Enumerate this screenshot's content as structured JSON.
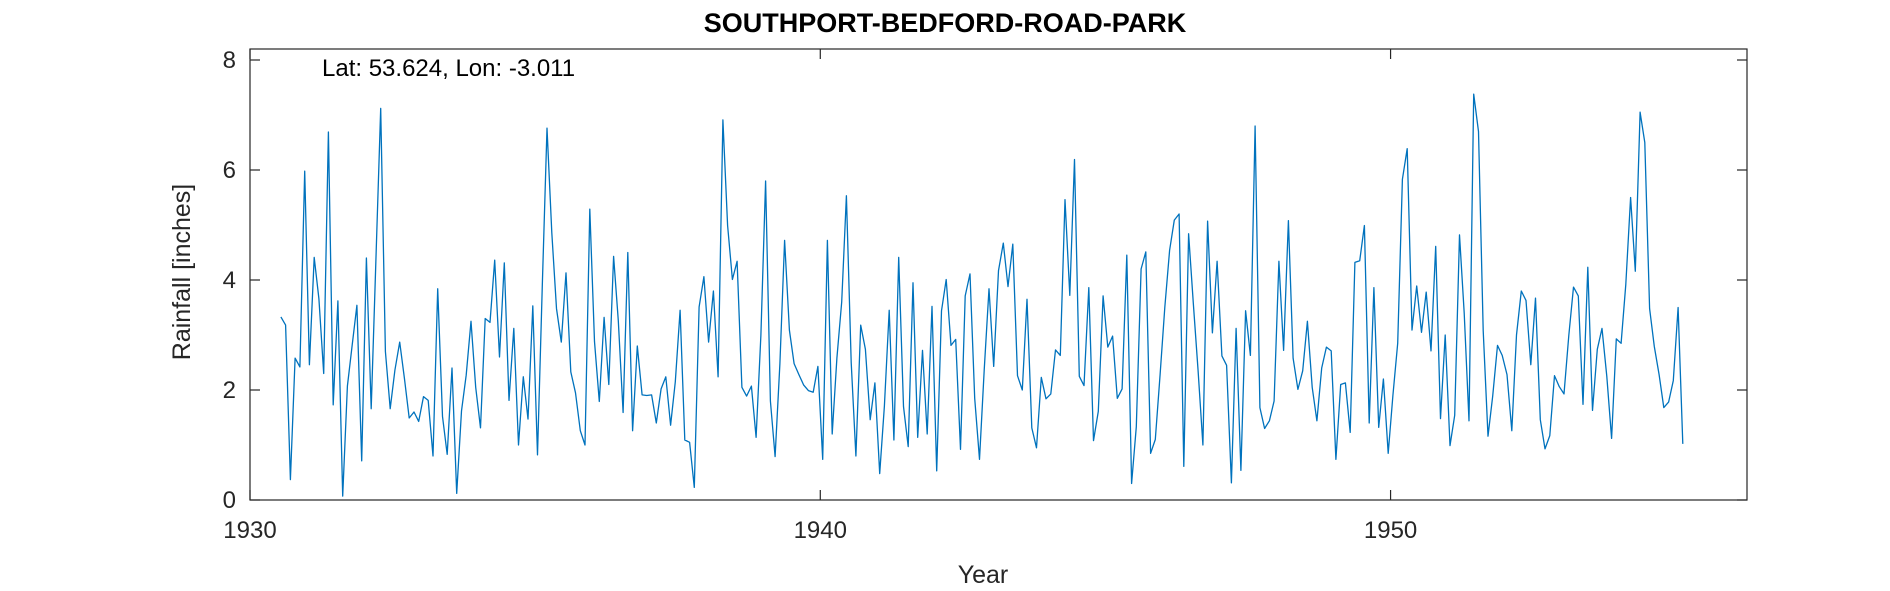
{
  "chart_data": {
    "type": "line",
    "title": "SOUTHPORT-BEDFORD-ROAD-PARK",
    "annotation": "Lat: 53.624, Lon: -3.011",
    "xlabel": "Year",
    "ylabel": "Rainfall [inches]",
    "xlim": [
      1930,
      1956.25
    ],
    "ylim": [
      0,
      8.2
    ],
    "xticks": [
      1930,
      1940,
      1950
    ],
    "yticks": [
      0,
      2,
      4,
      6,
      8
    ],
    "grid": false,
    "legend": "none",
    "series": [
      {
        "color": "#0072BD",
        "x_start": 1930.5417,
        "x_step": 0.083333,
        "values": [
          3.33,
          3.18,
          0.37,
          2.58,
          2.42,
          5.98,
          2.46,
          4.41,
          3.66,
          2.3,
          6.69,
          1.73,
          3.62,
          0.07,
          2.07,
          2.82,
          3.54,
          0.71,
          4.4,
          1.66,
          4.36,
          7.12,
          2.7,
          1.66,
          2.36,
          2.87,
          2.2,
          1.49,
          1.6,
          1.43,
          1.88,
          1.81,
          0.8,
          3.84,
          1.52,
          0.83,
          2.4,
          0.12,
          1.62,
          2.27,
          3.25,
          2.05,
          1.31,
          3.3,
          3.23,
          4.36,
          2.6,
          4.31,
          1.81,
          3.12,
          1.0,
          2.24,
          1.47,
          3.53,
          0.82,
          3.9,
          6.76,
          4.86,
          3.48,
          2.87,
          4.13,
          2.33,
          1.95,
          1.26,
          1.0,
          5.29,
          2.88,
          1.79,
          3.32,
          2.1,
          4.43,
          3.26,
          1.59,
          4.5,
          1.26,
          2.8,
          1.91,
          1.9,
          1.91,
          1.4,
          2.02,
          2.24,
          1.36,
          2.15,
          3.45,
          1.09,
          1.05,
          0.23,
          3.51,
          4.06,
          2.87,
          3.8,
          2.24,
          6.91,
          4.99,
          4.01,
          4.34,
          2.05,
          1.89,
          2.07,
          1.14,
          3.0,
          5.8,
          1.8,
          0.79,
          2.48,
          4.72,
          3.09,
          2.48,
          2.28,
          2.09,
          1.99,
          1.96,
          2.43,
          0.74,
          4.72,
          1.2,
          2.58,
          3.6,
          5.53,
          2.5,
          0.8,
          3.18,
          2.74,
          1.46,
          2.13,
          0.48,
          1.71,
          3.45,
          1.09,
          4.41,
          1.7,
          0.97,
          3.95,
          1.14,
          2.72,
          1.2,
          3.52,
          0.53,
          3.44,
          4.01,
          2.81,
          2.92,
          0.92,
          3.71,
          4.11,
          1.85,
          0.74,
          2.36,
          3.84,
          2.43,
          4.17,
          4.67,
          3.88,
          4.65,
          2.26,
          2.0,
          3.65,
          1.31,
          0.95,
          2.23,
          1.84,
          1.93,
          2.73,
          2.63,
          5.46,
          3.72,
          6.19,
          2.25,
          2.08,
          3.86,
          1.08,
          1.61,
          3.71,
          2.78,
          2.98,
          1.85,
          2.02,
          4.45,
          0.3,
          1.33,
          4.2,
          4.51,
          0.85,
          1.1,
          2.28,
          3.5,
          4.54,
          5.09,
          5.2,
          0.61,
          4.84,
          3.58,
          2.35,
          1.0,
          5.07,
          3.04,
          4.34,
          2.62,
          2.45,
          0.31,
          3.12,
          0.54,
          3.44,
          2.63,
          6.8,
          1.68,
          1.3,
          1.44,
          1.8,
          4.34,
          2.72,
          5.08,
          2.58,
          2.01,
          2.35,
          3.25,
          2.05,
          1.44,
          2.4,
          2.78,
          2.71,
          0.74,
          2.1,
          2.13,
          1.23,
          4.32,
          4.35,
          4.99,
          1.4,
          3.86,
          1.32,
          2.2,
          0.85,
          1.9,
          2.85,
          5.83,
          6.39,
          3.09,
          3.89,
          3.05,
          3.78,
          2.71,
          4.61,
          1.48,
          3.0,
          0.99,
          1.54,
          4.82,
          3.4,
          1.44,
          7.38,
          6.7,
          3.08,
          1.16,
          1.89,
          2.81,
          2.63,
          2.28,
          1.26,
          3.0,
          3.8,
          3.63,
          2.46,
          3.67,
          1.46,
          0.93,
          1.17,
          2.26,
          2.06,
          1.93,
          2.99,
          3.87,
          3.71,
          1.74,
          4.23,
          1.63,
          2.74,
          3.12,
          2.25,
          1.12,
          2.93,
          2.85,
          3.92,
          5.5,
          4.16,
          7.05,
          6.5,
          3.48,
          2.79,
          2.28,
          1.68,
          1.78,
          2.17,
          3.5,
          1.02
        ]
      }
    ]
  }
}
